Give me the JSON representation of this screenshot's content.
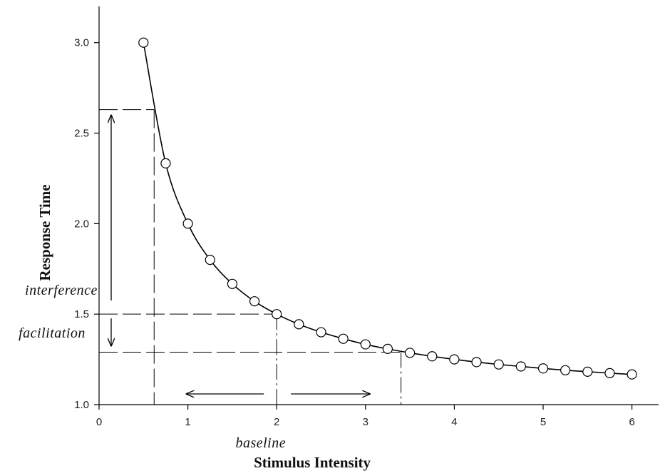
{
  "chart_data": {
    "type": "line",
    "title": "",
    "xlabel": "Stimulus Intensity",
    "ylabel": "Response Time",
    "xlim": [
      0,
      6.3
    ],
    "ylim": [
      1.0,
      3.2
    ],
    "x_ticks": [
      0,
      1,
      2,
      3,
      4,
      5,
      6
    ],
    "y_ticks": [
      1.0,
      1.5,
      2.0,
      2.5,
      3.0
    ],
    "x_tick_labels": [
      "0",
      "1",
      "2",
      "3",
      "4",
      "5",
      "6"
    ],
    "y_tick_labels": [
      "1.0",
      "1.5",
      "2.0",
      "2.5",
      "3.0"
    ],
    "grid": false,
    "legend": "none",
    "series": [
      {
        "x": [
          0.5,
          0.75,
          1.0,
          1.25,
          1.5,
          1.75,
          2.0,
          2.25,
          2.5,
          2.75,
          3.0,
          3.25,
          3.5,
          3.75,
          4.0,
          4.25,
          4.5,
          4.75,
          5.0,
          5.25,
          5.5,
          5.75,
          6.0
        ],
        "y": [
          3.0,
          2.333,
          2.0,
          1.8,
          1.667,
          1.571,
          1.5,
          1.444,
          1.4,
          1.364,
          1.333,
          1.308,
          1.286,
          1.267,
          1.25,
          1.235,
          1.222,
          1.211,
          1.2,
          1.19,
          1.182,
          1.174,
          1.167
        ]
      }
    ],
    "reference_lines": {
      "interference_level": 2.63,
      "baseline_level": 1.5,
      "facilitation_level": 1.29,
      "interference_intensity": 0.62,
      "baseline_intensity": 2.0,
      "facilitation_intensity": 3.4
    },
    "annotations": {
      "interference": "interference",
      "facilitation": "facilitation",
      "baseline": "baseline"
    }
  }
}
